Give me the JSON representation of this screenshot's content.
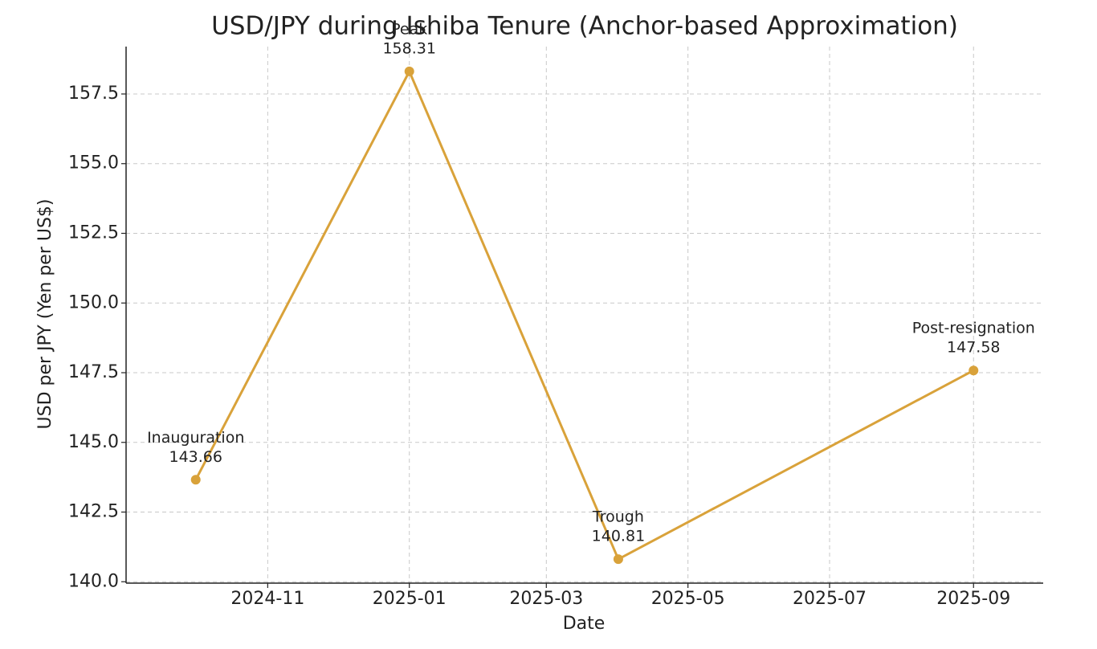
{
  "chart_data": {
    "type": "line",
    "title": "USD/JPY during Ishiba Tenure (Anchor-based Approximation)",
    "x_label": "Date",
    "y_label": "USD per JPY (Yen per US$)",
    "x": [
      "2024-10",
      "2025-01",
      "2025-04",
      "2025-09"
    ],
    "series": [
      {
        "name": "USD/JPY",
        "color": "#d9a23a",
        "values": [
          143.66,
          158.31,
          140.81,
          147.58
        ]
      }
    ],
    "point_labels": [
      "Inauguration",
      "Peak",
      "Trough",
      "Post-resignation"
    ],
    "xlim": [
      "2024-09",
      "2025-10"
    ],
    "xticks": [
      "2024-11",
      "2025-01",
      "2025-03",
      "2025-05",
      "2025-07",
      "2025-09"
    ],
    "ylim": [
      139.95,
      159.2
    ],
    "yticks": [
      {
        "value": 140,
        "label": "140.0"
      },
      {
        "value": 142.5,
        "label": "142.5"
      },
      {
        "value": 145,
        "label": "145.0"
      },
      {
        "value": 147.5,
        "label": "147.5"
      },
      {
        "value": 150,
        "label": "150.0"
      },
      {
        "value": 152.5,
        "label": "152.5"
      },
      {
        "value": 155,
        "label": "155.0"
      },
      {
        "value": 157.5,
        "label": "157.5"
      }
    ],
    "grid": true
  }
}
